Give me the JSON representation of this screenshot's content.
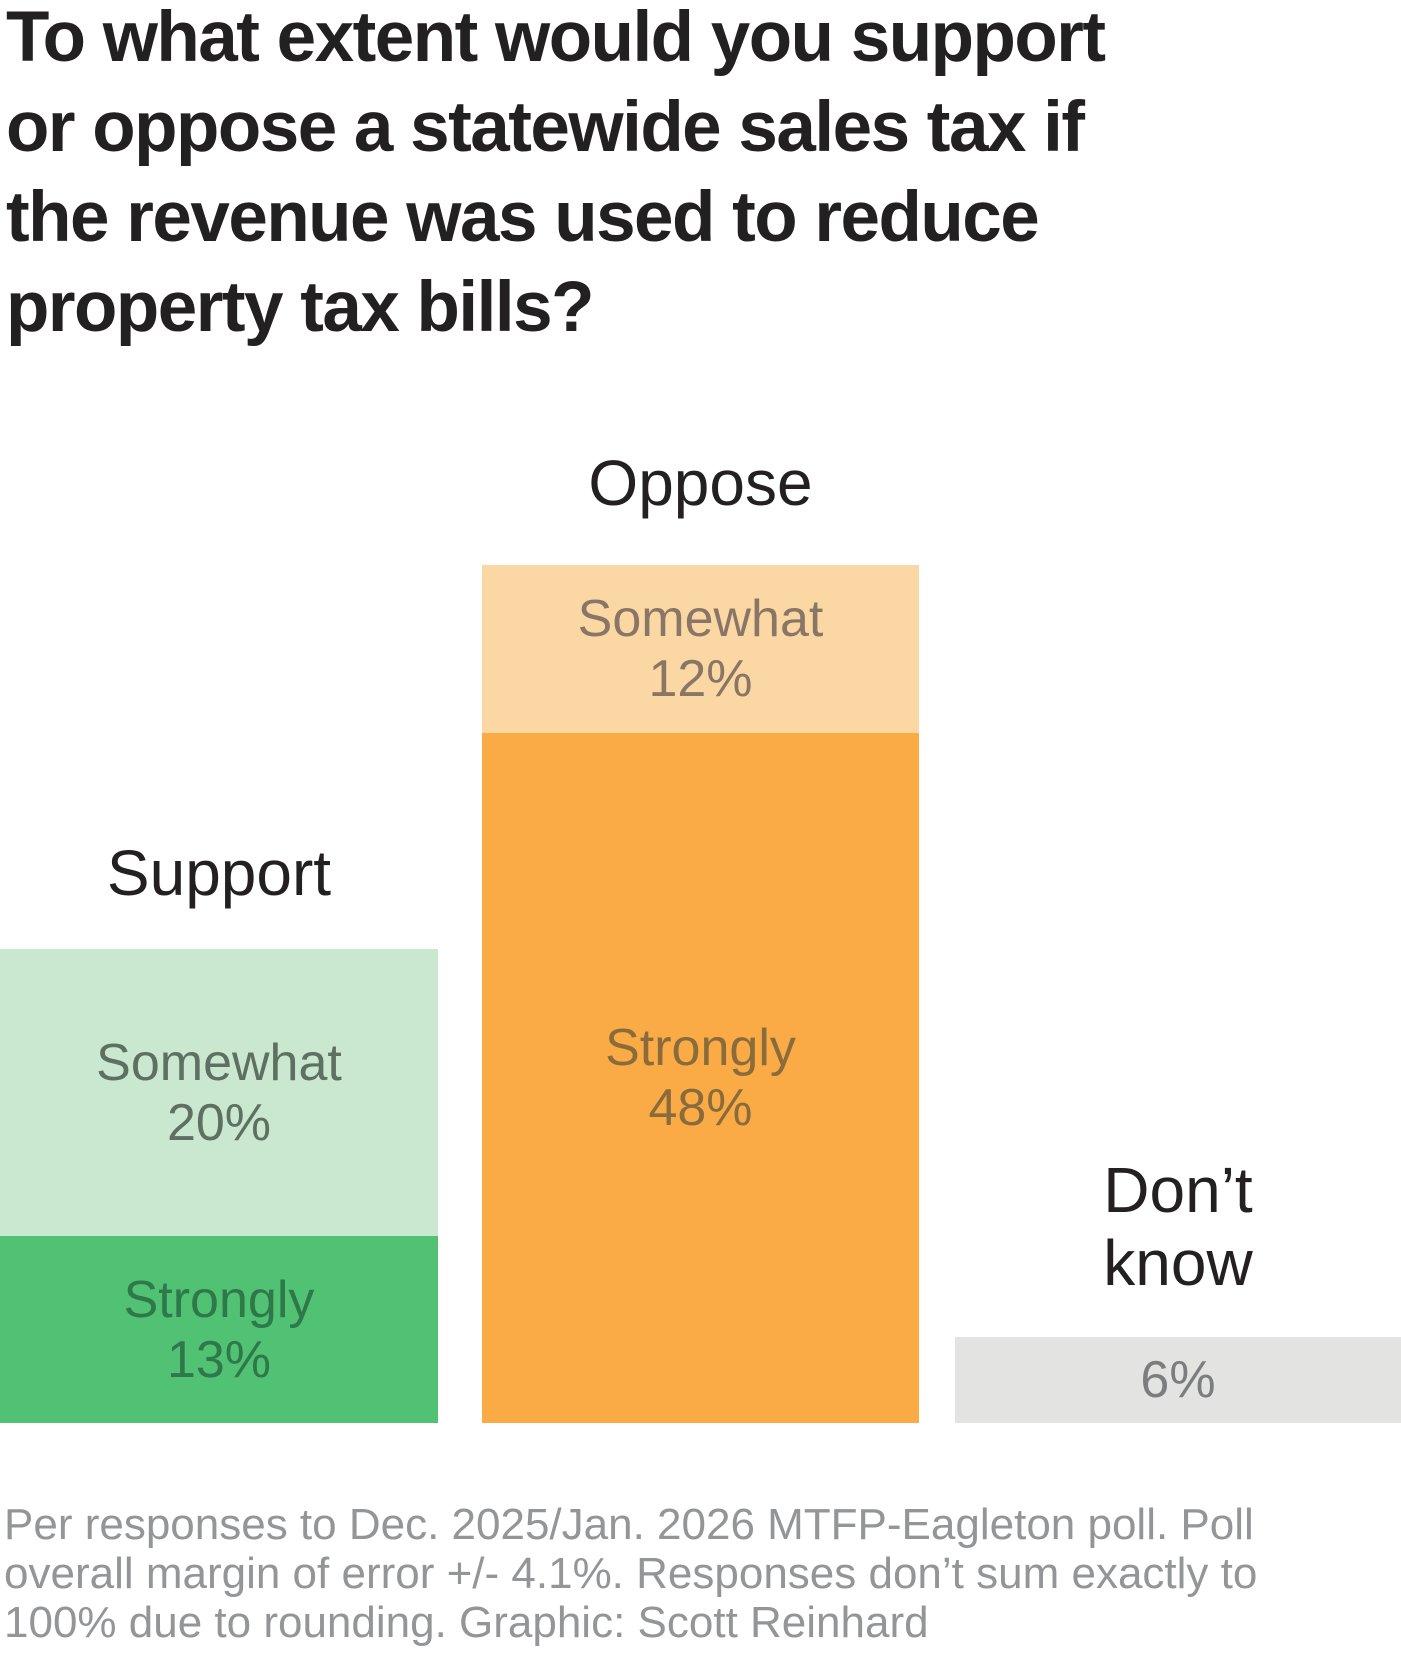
{
  "title": "To what extent would you support\nor oppose a statewide sales tax if\nthe revenue was used to reduce\nproperty tax bills?",
  "footer": "Per responses to Dec. 2025/Jan. 2026 MTFP-Eagleton poll. Poll\noverall margin of error +/- 4.1%. Responses don’t sum exactly to\n100% due to rounding. Graphic: Scott Reinhard",
  "chart_data": {
    "type": "bar",
    "stacked": true,
    "orientation": "vertical",
    "value_unit": "%",
    "categories": [
      "Support",
      "Oppose",
      "Don’t know"
    ],
    "series": [
      {
        "name": "Somewhat",
        "values": [
          20,
          12,
          null
        ]
      },
      {
        "name": "Strongly",
        "values": [
          13,
          48,
          null
        ]
      },
      {
        "name": "Don’t know",
        "values": [
          null,
          null,
          6
        ]
      }
    ],
    "group_totals": [
      33,
      60,
      6
    ],
    "axes": "none",
    "grid": false,
    "legend": "labels drawn inside bar segments",
    "colors": {
      "support_somewhat": "#cae8cf",
      "support_strongly": "#51c173",
      "oppose_somewhat": "#fbd8a3",
      "oppose_strongly": "#faab46",
      "dont_know": "#e3e3e2"
    },
    "note": "Responses don’t sum exactly to 100% due to rounding."
  },
  "groups": {
    "support": {
      "label": "Support",
      "somewhat": "Somewhat\n20%",
      "strongly": "Strongly\n13%"
    },
    "oppose": {
      "label": "Oppose",
      "somewhat": "Somewhat\n12%",
      "strongly": "Strongly\n48%"
    },
    "dont_know": {
      "label": "Don’t\nknow",
      "value": "6%"
    }
  }
}
